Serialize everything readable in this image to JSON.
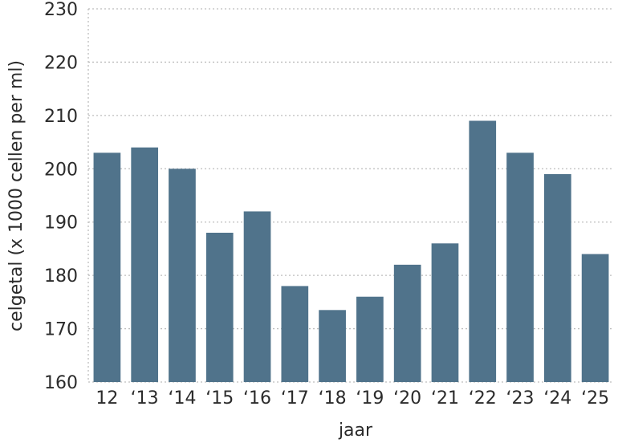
{
  "chart_data": {
    "type": "bar",
    "categories": [
      "12",
      "‘13",
      "‘14",
      "‘15",
      "‘16",
      "‘17",
      "‘18",
      "‘19",
      "‘20",
      "‘21",
      "‘22",
      "‘23",
      "‘24",
      "‘25"
    ],
    "values": [
      203,
      204,
      200,
      188,
      192,
      178,
      173.5,
      176,
      182,
      186,
      209,
      203,
      199,
      184
    ],
    "xlabel": "jaar",
    "ylabel": "celgetal (x 1000 cellen per ml)",
    "ylim": [
      160,
      230
    ],
    "yticks": [
      160,
      170,
      180,
      190,
      200,
      210,
      220,
      230
    ],
    "grid": true,
    "bar_color": "#50738b"
  }
}
